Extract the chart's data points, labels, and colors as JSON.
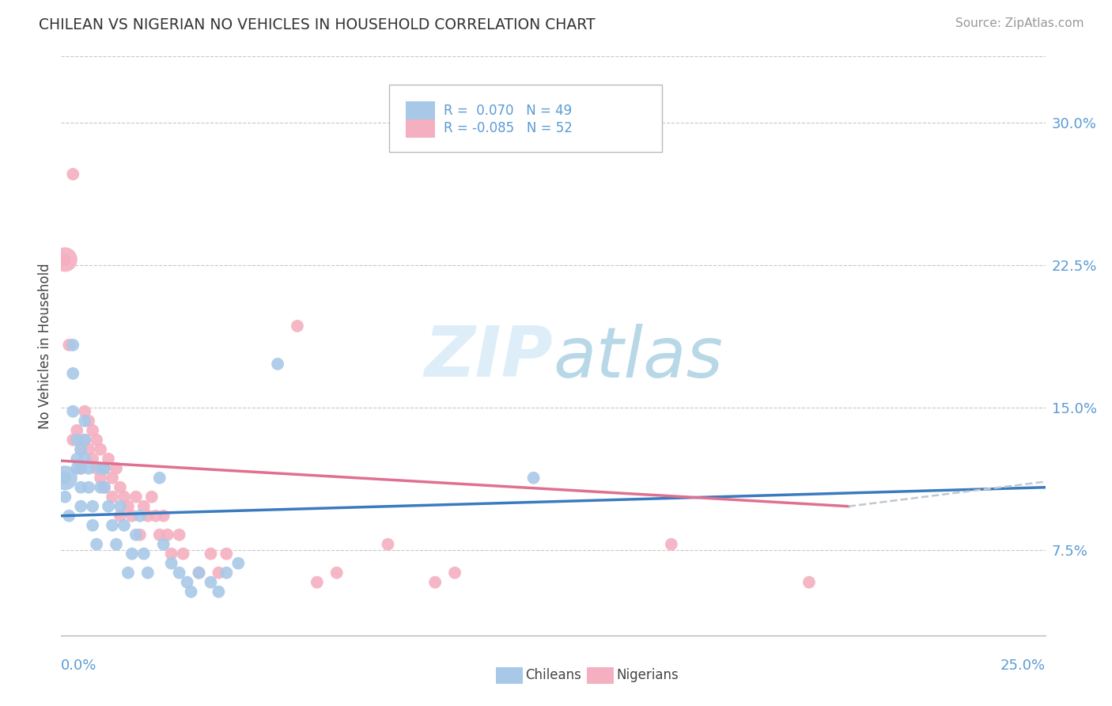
{
  "title": "CHILEAN VS NIGERIAN NO VEHICLES IN HOUSEHOLD CORRELATION CHART",
  "source": "Source: ZipAtlas.com",
  "ylabel": "No Vehicles in Household",
  "ytick_labels": [
    "7.5%",
    "15.0%",
    "22.5%",
    "30.0%"
  ],
  "ytick_values": [
    0.075,
    0.15,
    0.225,
    0.3
  ],
  "xlim": [
    0.0,
    0.25
  ],
  "ylim": [
    0.03,
    0.335
  ],
  "chilean_color": "#a8c8e8",
  "nigerian_color": "#f4b0c0",
  "chilean_line_color": "#3a7bbf",
  "nigerian_line_color": "#e07090",
  "trend_ext_color": "#c0c8d0",
  "watermark_color": "#ddeef8",
  "background_color": "#ffffff",
  "grid_color": "#c8c8c8",
  "text_color": "#444444",
  "axis_color": "#5b9bd5",
  "chilean_R": 0.07,
  "chilean_N": 49,
  "nigerian_R": -0.085,
  "nigerian_N": 52,
  "chilean_trend": [
    0.0,
    0.093,
    0.25,
    0.108
  ],
  "nigerian_trend_solid": [
    0.0,
    0.122,
    0.2,
    0.098
  ],
  "nigerian_trend_dashed": [
    0.2,
    0.098,
    0.25,
    0.111
  ],
  "chileans_scatter": [
    [
      0.001,
      0.113
    ],
    [
      0.001,
      0.103
    ],
    [
      0.002,
      0.093
    ],
    [
      0.003,
      0.183
    ],
    [
      0.003,
      0.168
    ],
    [
      0.003,
      0.148
    ],
    [
      0.004,
      0.133
    ],
    [
      0.004,
      0.123
    ],
    [
      0.004,
      0.118
    ],
    [
      0.005,
      0.128
    ],
    [
      0.005,
      0.118
    ],
    [
      0.005,
      0.108
    ],
    [
      0.005,
      0.098
    ],
    [
      0.006,
      0.143
    ],
    [
      0.006,
      0.133
    ],
    [
      0.006,
      0.123
    ],
    [
      0.007,
      0.118
    ],
    [
      0.007,
      0.108
    ],
    [
      0.008,
      0.098
    ],
    [
      0.008,
      0.088
    ],
    [
      0.009,
      0.078
    ],
    [
      0.01,
      0.118
    ],
    [
      0.01,
      0.108
    ],
    [
      0.011,
      0.118
    ],
    [
      0.011,
      0.108
    ],
    [
      0.012,
      0.098
    ],
    [
      0.013,
      0.088
    ],
    [
      0.014,
      0.078
    ],
    [
      0.015,
      0.098
    ],
    [
      0.016,
      0.088
    ],
    [
      0.017,
      0.063
    ],
    [
      0.018,
      0.073
    ],
    [
      0.019,
      0.083
    ],
    [
      0.02,
      0.093
    ],
    [
      0.021,
      0.073
    ],
    [
      0.022,
      0.063
    ],
    [
      0.025,
      0.113
    ],
    [
      0.026,
      0.078
    ],
    [
      0.028,
      0.068
    ],
    [
      0.03,
      0.063
    ],
    [
      0.032,
      0.058
    ],
    [
      0.033,
      0.053
    ],
    [
      0.035,
      0.063
    ],
    [
      0.038,
      0.058
    ],
    [
      0.04,
      0.053
    ],
    [
      0.042,
      0.063
    ],
    [
      0.045,
      0.068
    ],
    [
      0.055,
      0.173
    ],
    [
      0.12,
      0.113
    ]
  ],
  "nigerians_scatter": [
    [
      0.001,
      0.228
    ],
    [
      0.002,
      0.183
    ],
    [
      0.003,
      0.133
    ],
    [
      0.003,
      0.273
    ],
    [
      0.004,
      0.138
    ],
    [
      0.005,
      0.128
    ],
    [
      0.005,
      0.118
    ],
    [
      0.006,
      0.148
    ],
    [
      0.006,
      0.133
    ],
    [
      0.007,
      0.143
    ],
    [
      0.007,
      0.128
    ],
    [
      0.008,
      0.138
    ],
    [
      0.008,
      0.123
    ],
    [
      0.009,
      0.133
    ],
    [
      0.009,
      0.118
    ],
    [
      0.01,
      0.128
    ],
    [
      0.01,
      0.113
    ],
    [
      0.011,
      0.118
    ],
    [
      0.011,
      0.108
    ],
    [
      0.012,
      0.123
    ],
    [
      0.013,
      0.113
    ],
    [
      0.013,
      0.103
    ],
    [
      0.014,
      0.118
    ],
    [
      0.015,
      0.108
    ],
    [
      0.015,
      0.093
    ],
    [
      0.016,
      0.103
    ],
    [
      0.017,
      0.098
    ],
    [
      0.018,
      0.093
    ],
    [
      0.019,
      0.103
    ],
    [
      0.02,
      0.083
    ],
    [
      0.021,
      0.098
    ],
    [
      0.022,
      0.093
    ],
    [
      0.023,
      0.103
    ],
    [
      0.024,
      0.093
    ],
    [
      0.025,
      0.083
    ],
    [
      0.026,
      0.093
    ],
    [
      0.027,
      0.083
    ],
    [
      0.028,
      0.073
    ],
    [
      0.03,
      0.083
    ],
    [
      0.031,
      0.073
    ],
    [
      0.035,
      0.063
    ],
    [
      0.038,
      0.073
    ],
    [
      0.04,
      0.063
    ],
    [
      0.042,
      0.073
    ],
    [
      0.06,
      0.193
    ],
    [
      0.065,
      0.058
    ],
    [
      0.07,
      0.063
    ],
    [
      0.083,
      0.078
    ],
    [
      0.095,
      0.058
    ],
    [
      0.1,
      0.063
    ],
    [
      0.155,
      0.078
    ],
    [
      0.19,
      0.058
    ]
  ]
}
